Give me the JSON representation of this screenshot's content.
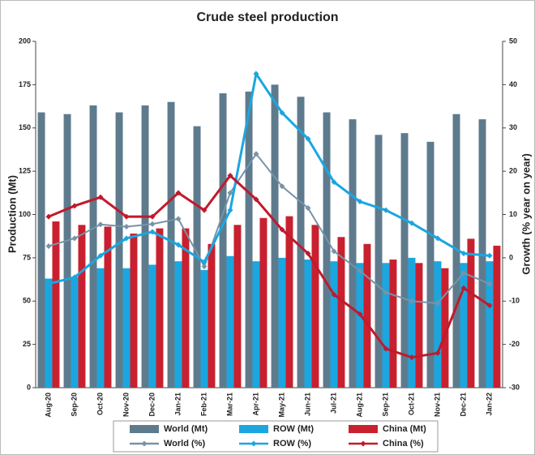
{
  "chart_data": {
    "type": "bar",
    "title": "Crude steel production",
    "y_label": "Production (Mt)",
    "y2_label": "Growth (% year on year)",
    "categories": [
      "Aug-20",
      "Sep-20",
      "Oct-20",
      "Nov-20",
      "Dec-20",
      "Jan-21",
      "Feb-21",
      "Mar-21",
      "Apr-21",
      "May-21",
      "Jun-21",
      "Jul-21",
      "Aug-21",
      "Sep-21",
      "Oct-21",
      "Nov-21",
      "Dec-21",
      "Jan-22"
    ],
    "ylim": [
      0,
      200
    ],
    "yticks": [
      0,
      25,
      50,
      75,
      100,
      125,
      150,
      175,
      200
    ],
    "y2lim": [
      -30,
      50
    ],
    "y2ticks": [
      -30,
      -20,
      -10,
      0,
      10,
      20,
      30,
      40,
      50
    ],
    "series": [
      {
        "name": "World (Mt)",
        "type": "bar",
        "color": "#5e7b8d",
        "values": [
          159,
          158,
          163,
          159,
          163,
          165,
          151,
          170,
          171,
          175,
          168,
          159,
          155,
          146,
          147,
          142,
          158,
          155
        ]
      },
      {
        "name": "ROW (Mt)",
        "type": "bar",
        "color": "#1ba6df",
        "values": [
          63,
          64,
          69,
          69,
          71,
          73,
          68,
          76,
          73,
          75,
          74,
          73,
          72,
          72,
          75,
          73,
          72,
          73
        ]
      },
      {
        "name": "China (Mt)",
        "type": "bar",
        "color": "#c8202f",
        "values": [
          96,
          94,
          93,
          89,
          92,
          92,
          83,
          94,
          98,
          99,
          94,
          87,
          83,
          74,
          72,
          69,
          86,
          82
        ]
      },
      {
        "name": "World (%)",
        "type": "line",
        "axis": "y2",
        "color": "#7893a8",
        "values": [
          2.7,
          4.5,
          7.7,
          7.2,
          7.8,
          9,
          -2,
          15,
          24,
          16.5,
          11.5,
          1.5,
          -3,
          -8,
          -10,
          -10.5,
          -3.5,
          -6
        ]
      },
      {
        "name": "ROW (%)",
        "type": "line",
        "axis": "y2",
        "color": "#1ba6df",
        "values": [
          -6,
          -4.5,
          0.5,
          4.5,
          6,
          3,
          -1,
          11,
          42.5,
          33.5,
          27.5,
          17.5,
          13,
          11,
          8,
          4.5,
          1,
          0.5
        ]
      },
      {
        "name": "China (%)",
        "type": "line",
        "axis": "y2",
        "color": "#c01a2c",
        "values": [
          9.5,
          12,
          14,
          9.5,
          9.5,
          15,
          11,
          19,
          13.5,
          6.5,
          1,
          -8.5,
          -13,
          -21,
          -23,
          -22,
          -7,
          -11
        ]
      }
    ]
  }
}
